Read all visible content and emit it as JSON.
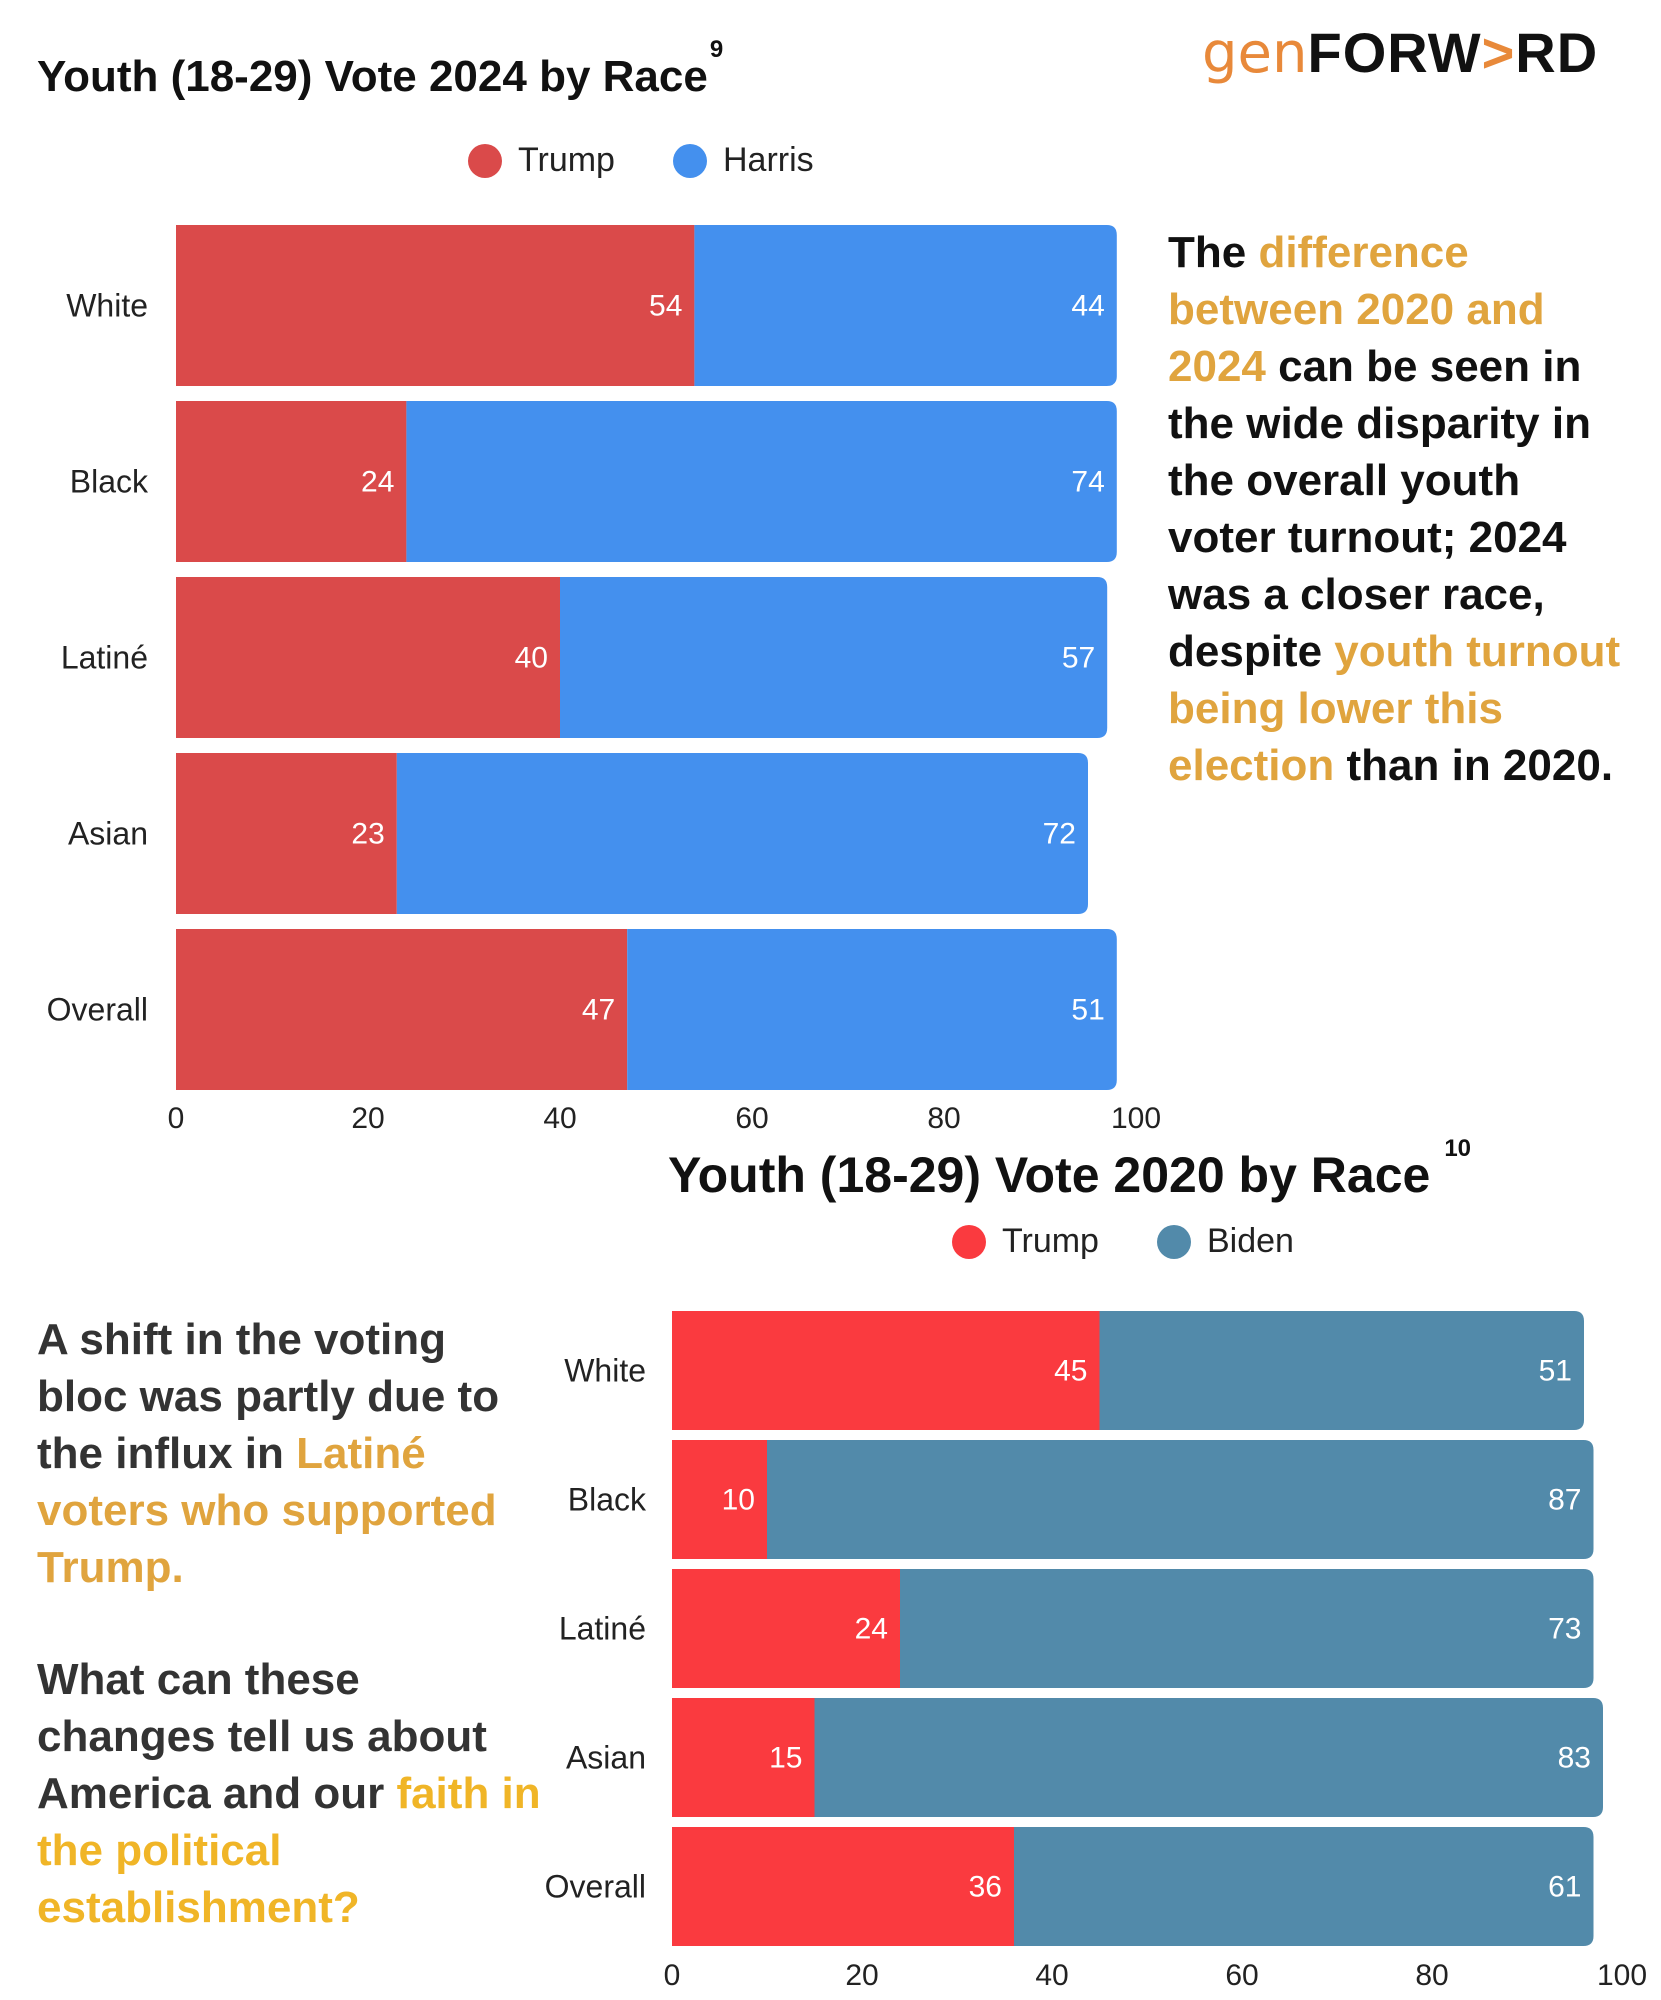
{
  "logo": {
    "gen": "gen",
    "forward_a": "FORW",
    "forward_arrow": ">",
    "forward_b": "RD"
  },
  "chart_data": [
    {
      "type": "bar",
      "orientation": "horizontal",
      "stacked": true,
      "title": "Youth (18-29) Vote 2024 by Race",
      "footnote": "9",
      "categories": [
        "White",
        "Black",
        "Latiné",
        "Asian",
        "Overall"
      ],
      "series": [
        {
          "name": "Trump",
          "values": [
            54,
            24,
            40,
            23,
            47
          ],
          "color": "#da4a4a"
        },
        {
          "name": "Harris",
          "values": [
            44,
            74,
            57,
            72,
            51
          ],
          "color": "#4490ee"
        }
      ],
      "xlim": [
        0,
        100
      ],
      "xticks": [
        0,
        20,
        40,
        60,
        80,
        100
      ],
      "legend": "top"
    },
    {
      "type": "bar",
      "orientation": "horizontal",
      "stacked": true,
      "title": "Youth (18-29) Vote 2020 by Race",
      "footnote": "10",
      "categories": [
        "White",
        "Black",
        "Latiné",
        "Asian",
        "Overall"
      ],
      "series": [
        {
          "name": "Trump",
          "values": [
            45,
            10,
            24,
            15,
            36
          ],
          "color": "#fa3a3f"
        },
        {
          "name": "Biden",
          "values": [
            51,
            87,
            73,
            83,
            61
          ],
          "color": "#528aaa"
        }
      ],
      "xlim": [
        0,
        100
      ],
      "xticks": [
        0,
        20,
        40,
        60,
        80,
        100
      ],
      "legend": "top"
    }
  ],
  "text_right": {
    "p1": "The ",
    "p2": "difference between 2020 and 2024",
    "p3": "  can be seen in the wide disparity in the overall youth voter turnout; 2024 was a closer race, despite ",
    "p4": "youth turnout being lower this election",
    "p5": " than in 2020."
  },
  "text_left_1": {
    "p1": "A shift in the voting bloc was partly due to the influx in ",
    "p2": "Latiné voters who supported Trump."
  },
  "text_left_2": {
    "p1": "What can these changes tell us about America and our ",
    "p2": "faith in the political establishment?"
  }
}
